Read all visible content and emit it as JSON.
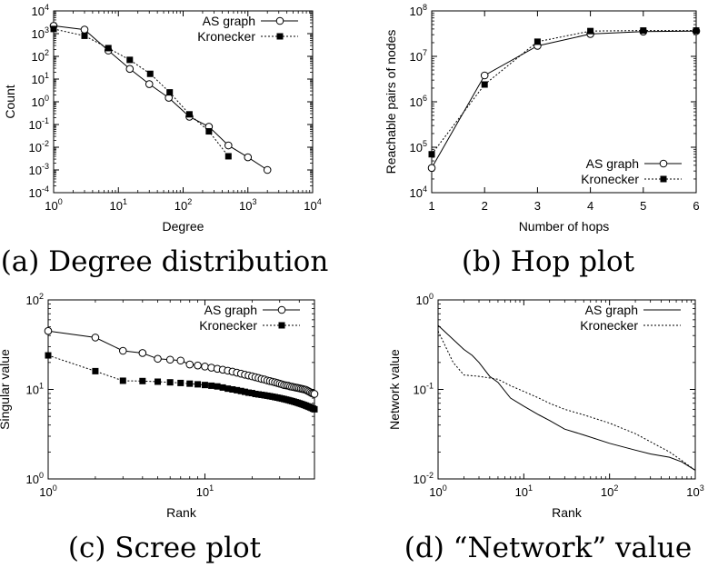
{
  "chart_data": [
    {
      "id": "a",
      "caption": "(a) Degree distribution",
      "type": "line",
      "xscale": "log",
      "yscale": "log",
      "xlim": [
        1,
        10000
      ],
      "ylim": [
        0.0001,
        10000
      ],
      "xlabel": "Degree",
      "ylabel": "Count",
      "xticks": [
        1,
        10,
        100,
        1000,
        10000
      ],
      "xtick_labels": [
        [
          "10",
          "0"
        ],
        [
          "10",
          "1"
        ],
        [
          "10",
          "2"
        ],
        [
          "10",
          "3"
        ],
        [
          "10",
          "4"
        ]
      ],
      "yticks": [
        0.0001,
        0.001,
        0.01,
        0.1,
        1,
        10,
        100,
        1000,
        10000
      ],
      "ytick_labels": [
        [
          "10",
          "-4"
        ],
        [
          "10",
          "-3"
        ],
        [
          "10",
          "-2"
        ],
        [
          "10",
          "-1"
        ],
        [
          "10",
          "0"
        ],
        [
          "10",
          "1"
        ],
        [
          "10",
          "2"
        ],
        [
          "10",
          "3"
        ],
        [
          "10",
          "4"
        ]
      ],
      "legend_position": "top-right",
      "series": [
        {
          "name": "AS graph",
          "style": "solid",
          "marker": "circle",
          "points": [
            [
              1,
              2200
            ],
            [
              3,
              1500
            ],
            [
              7,
              180
            ],
            [
              15,
              28
            ],
            [
              30,
              6
            ],
            [
              60,
              1.5
            ],
            [
              125,
              0.22
            ],
            [
              250,
              0.08
            ],
            [
              500,
              0.012
            ],
            [
              1000,
              0.0036
            ],
            [
              2000,
              0.001
            ]
          ]
        },
        {
          "name": "Kronecker",
          "style": "dashed",
          "marker": "square",
          "points": [
            [
              1,
              1600
            ],
            [
              3,
              800
            ],
            [
              7,
              230
            ],
            [
              15,
              70
            ],
            [
              31,
              17
            ],
            [
              62,
              2.6
            ],
            [
              125,
              0.28
            ],
            [
              250,
              0.05
            ],
            [
              500,
              0.004
            ]
          ]
        }
      ]
    },
    {
      "id": "b",
      "caption": "(b) Hop plot",
      "type": "line",
      "xscale": "linear",
      "yscale": "log",
      "xlim": [
        1,
        6
      ],
      "ylim": [
        10000,
        100000000
      ],
      "xlabel": "Number of hops",
      "ylabel": "Reachable pairs of nodes",
      "xticks": [
        1,
        2,
        3,
        4,
        5,
        6
      ],
      "xtick_labels": [
        [
          "1",
          ""
        ],
        [
          "2",
          ""
        ],
        [
          "3",
          ""
        ],
        [
          "4",
          ""
        ],
        [
          "5",
          ""
        ],
        [
          "6",
          ""
        ]
      ],
      "yticks": [
        10000,
        100000,
        1000000,
        10000000,
        100000000
      ],
      "ytick_labels": [
        [
          "10",
          "4"
        ],
        [
          "10",
          "5"
        ],
        [
          "10",
          "6"
        ],
        [
          "10",
          "7"
        ],
        [
          "10",
          "8"
        ]
      ],
      "legend_position": "bottom-right",
      "series": [
        {
          "name": "AS graph",
          "style": "solid",
          "marker": "circle",
          "points": [
            [
              1,
              35000
            ],
            [
              2,
              3800000
            ],
            [
              3,
              17000000
            ],
            [
              4,
              31000000
            ],
            [
              5,
              35000000
            ],
            [
              6,
              36000000
            ]
          ]
        },
        {
          "name": "Kronecker",
          "style": "dashed",
          "marker": "square",
          "points": [
            [
              1,
              70000
            ],
            [
              2,
              2400000
            ],
            [
              3,
              21000000
            ],
            [
              4,
              36000000
            ],
            [
              5,
              37000000
            ],
            [
              6,
              37000000
            ]
          ]
        }
      ]
    },
    {
      "id": "c",
      "caption": "(c) Scree plot",
      "type": "line",
      "xscale": "log",
      "yscale": "log",
      "xlim": [
        1,
        50
      ],
      "ylim": [
        1,
        100
      ],
      "xlabel": "Rank",
      "ylabel": "Singular value",
      "xticks": [
        1,
        10
      ],
      "xtick_labels": [
        [
          "10",
          "0"
        ],
        [
          "10",
          "1"
        ]
      ],
      "yticks": [
        1,
        10,
        100
      ],
      "ytick_labels": [
        [
          "10",
          "0"
        ],
        [
          "10",
          "1"
        ],
        [
          "10",
          "2"
        ]
      ],
      "legend_position": "top-right",
      "series": [
        {
          "name": "AS graph",
          "style": "solid",
          "marker": "circle",
          "x": [
            1,
            2,
            3,
            4,
            5,
            6,
            7,
            8,
            9,
            10,
            11,
            12,
            13,
            14,
            15,
            16,
            17,
            18,
            19,
            20,
            21,
            22,
            23,
            24,
            25,
            26,
            27,
            28,
            29,
            30,
            31,
            32,
            33,
            34,
            35,
            36,
            37,
            38,
            39,
            40,
            41,
            42,
            43,
            44,
            45,
            46,
            47,
            48,
            49,
            50
          ],
          "y": [
            45,
            38,
            27,
            25.5,
            22,
            21.5,
            21,
            19,
            18.5,
            18,
            17.5,
            17,
            16.6,
            16.2,
            15.8,
            15.4,
            15,
            14.6,
            14.3,
            14,
            13.7,
            13.4,
            13.1,
            12.9,
            12.6,
            12.4,
            12.2,
            12,
            11.8,
            11.6,
            11.4,
            11.2,
            11.1,
            11,
            10.8,
            10.7,
            10.6,
            10.5,
            10.4,
            10.3,
            10.2,
            10.1,
            10,
            9.9,
            9.7,
            9.5,
            9.3,
            9.1,
            9,
            8.9
          ]
        },
        {
          "name": "Kronecker",
          "style": "dashed",
          "marker": "square",
          "x": [
            1,
            2,
            3,
            4,
            5,
            6,
            7,
            8,
            9,
            10,
            11,
            12,
            13,
            14,
            15,
            16,
            17,
            18,
            19,
            20,
            21,
            22,
            23,
            24,
            25,
            26,
            27,
            28,
            29,
            30,
            31,
            32,
            33,
            34,
            35,
            36,
            37,
            38,
            39,
            40,
            41,
            42,
            43,
            44,
            45,
            46,
            47,
            48,
            49,
            50
          ],
          "y": [
            24,
            16,
            12.5,
            12.4,
            12.2,
            12,
            11.8,
            11.6,
            11.4,
            11.2,
            11,
            10.8,
            10.5,
            10.2,
            10,
            9.8,
            9.6,
            9.4,
            9.2,
            9.1,
            8.9,
            8.8,
            8.7,
            8.6,
            8.5,
            8.4,
            8.3,
            8.2,
            8.1,
            8,
            7.9,
            7.8,
            7.7,
            7.6,
            7.5,
            7.4,
            7.3,
            7.2,
            7.1,
            7,
            6.9,
            6.8,
            6.7,
            6.6,
            6.5,
            6.4,
            6.3,
            6.2,
            6.1,
            6
          ]
        }
      ]
    },
    {
      "id": "d",
      "caption": "(d) “Network” value",
      "type": "line",
      "xscale": "log",
      "yscale": "log",
      "xlim": [
        1,
        1000
      ],
      "ylim": [
        0.01,
        1
      ],
      "xlabel": "Rank",
      "ylabel": "Network value",
      "xticks": [
        1,
        10,
        100,
        1000
      ],
      "xtick_labels": [
        [
          "10",
          "0"
        ],
        [
          "10",
          "1"
        ],
        [
          "10",
          "2"
        ],
        [
          "10",
          "3"
        ]
      ],
      "yticks": [
        0.01,
        0.1,
        1
      ],
      "ytick_labels": [
        [
          "10",
          "-2"
        ],
        [
          "10",
          "-1"
        ],
        [
          "10",
          "0"
        ]
      ],
      "legend_position": "top-right",
      "series": [
        {
          "name": "AS graph",
          "style": "solid",
          "marker": "none",
          "points": [
            [
              1,
              0.52
            ],
            [
              2,
              0.28
            ],
            [
              2.5,
              0.24
            ],
            [
              3,
              0.2
            ],
            [
              4,
              0.14
            ],
            [
              5,
              0.12
            ],
            [
              7,
              0.08
            ],
            [
              10,
              0.065
            ],
            [
              15,
              0.052
            ],
            [
              20,
              0.045
            ],
            [
              30,
              0.036
            ],
            [
              50,
              0.031
            ],
            [
              100,
              0.025
            ],
            [
              200,
              0.021
            ],
            [
              300,
              0.019
            ],
            [
              500,
              0.0175
            ],
            [
              700,
              0.0155
            ],
            [
              1000,
              0.0125
            ]
          ]
        },
        {
          "name": "Kronecker",
          "style": "dashed",
          "marker": "none",
          "points": [
            [
              1,
              0.45
            ],
            [
              1.5,
              0.2
            ],
            [
              2,
              0.145
            ],
            [
              3,
              0.14
            ],
            [
              5,
              0.13
            ],
            [
              7,
              0.11
            ],
            [
              10,
              0.095
            ],
            [
              15,
              0.08
            ],
            [
              20,
              0.07
            ],
            [
              30,
              0.06
            ],
            [
              50,
              0.052
            ],
            [
              100,
              0.042
            ],
            [
              200,
              0.032
            ],
            [
              300,
              0.026
            ],
            [
              500,
              0.02
            ],
            [
              700,
              0.016
            ],
            [
              1000,
              0.0125
            ]
          ]
        }
      ]
    }
  ]
}
